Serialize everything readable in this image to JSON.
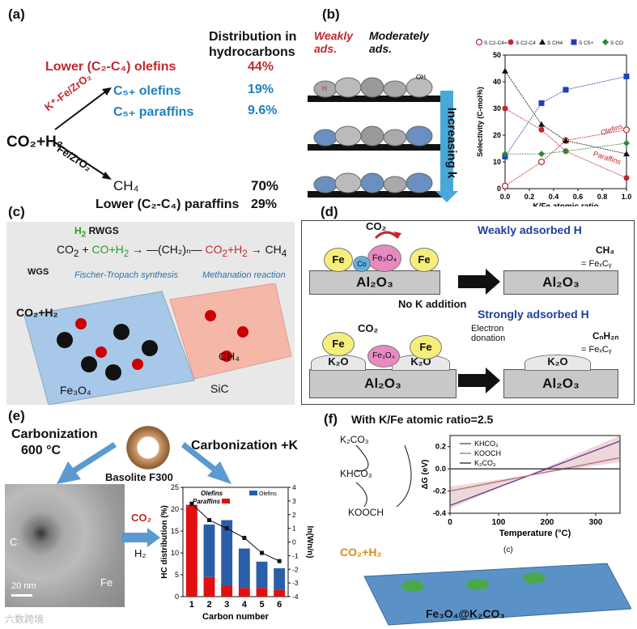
{
  "panels": {
    "a": {
      "label": "(a)",
      "dist_header": "Distribution in hydrocarbons",
      "reactant": "CO₂+H₂",
      "catalyst_k": "K⁺-Fe/ZrO₂",
      "catalyst_plain": "Fe/ZrO₂",
      "rows": [
        {
          "name": "Lower (C₂-C₄) olefins",
          "value": "44%",
          "color": "#c0282e"
        },
        {
          "name": "C₅₊ olefins",
          "value": "19%",
          "color": "#1f7fbf"
        },
        {
          "name": "C₅₊ paraffins",
          "value": "9.6%",
          "color": "#1f7fbf"
        },
        {
          "name": "CH₄",
          "value": "70%",
          "color": "#111111"
        },
        {
          "name": "Lower (C₂-C₄) paraffins",
          "value": "29%",
          "color": "#111111"
        }
      ]
    },
    "b": {
      "label": "(b)",
      "weakly": "Weakly ads.",
      "moderately": "Moderately ads.",
      "arrow_label": "Increasing k",
      "surface": "Al₂O₃",
      "site": "MOₓ"
    },
    "c": {
      "label": "(c)",
      "rwgs": "RWGS",
      "wgs": "WGS",
      "ft": "Fischer-Tropach synthesis",
      "meth": "Methanation reaction",
      "feed": "CO₂+H₂",
      "support1": "Fe₃O₄",
      "support2": "SiC",
      "chain": "—(CH₂)ₙ—",
      "ch4": "CH₄"
    },
    "d": {
      "label": "(d)",
      "weak_h": "Weakly adsorbed H",
      "strong_h": "Strongly adsorbed H",
      "no_k": "No K addition",
      "electron": "Electron donation",
      "surface": "Al₂O₃",
      "fe": "Fe",
      "co": "Co",
      "fe3o4": "Fe₃O₄",
      "k2o": "K₂O",
      "co2": "CO₂",
      "ch4": "CH₄",
      "cnh2n": "CₙH₂ₙ",
      "fexcy": "= FeₓCᵧ"
    },
    "e": {
      "label": "(e)",
      "carb": "Carbonization",
      "temp": "600 °C",
      "carb_k": "Carbonization +K",
      "mof": "Basolite F300",
      "scale": "20 nm",
      "c_label": "C",
      "fe_label": "Fe",
      "co2": "CO₂",
      "h2": "H₂"
    },
    "f": {
      "label": "(f)",
      "title": "With K/Fe atomic ratio=2.5",
      "sub": "(c)",
      "support": "Fe₃O₄@K₂CO₃",
      "feed": "CO₂+H₂",
      "cycle": [
        "K₂CO₃",
        "KHCO₃",
        "KOOCH"
      ]
    }
  },
  "watermark": "六数跨境",
  "chart_data": [
    {
      "type": "line",
      "title": "",
      "xlabel": "K/Fe atomic ratio",
      "ylabel": "Selectivity (C-mol%)",
      "xlim": [
        0,
        1.0
      ],
      "ylim": [
        0,
        50
      ],
      "xticks": [
        "0.0",
        "0.2",
        "0.4",
        "0.6",
        "0.8",
        "1.0"
      ],
      "yticks": [
        "0",
        "10",
        "20",
        "30",
        "40",
        "50"
      ],
      "legend_position": "top",
      "annotations": [
        "Olefins",
        "Paraffins"
      ],
      "series": [
        {
          "name": "S C2-C4=",
          "color": "#c0282e",
          "marker": "open-circle",
          "x": [
            0,
            0.3,
            0.5,
            1.0
          ],
          "y": [
            1,
            10,
            18,
            22
          ]
        },
        {
          "name": "S C2-C4",
          "color": "#c0282e",
          "marker": "circle",
          "x": [
            0,
            0.3,
            0.5,
            1.0
          ],
          "y": [
            30,
            22,
            14,
            4
          ]
        },
        {
          "name": "S CH4",
          "color": "#111111",
          "marker": "triangle",
          "x": [
            0,
            0.3,
            0.5,
            1.0
          ],
          "y": [
            44,
            24,
            18,
            13
          ]
        },
        {
          "name": "S C5+",
          "color": "#1f3fbf",
          "marker": "square",
          "x": [
            0,
            0.3,
            0.5,
            1.0
          ],
          "y": [
            12,
            32,
            37,
            42
          ]
        },
        {
          "name": "S CO",
          "color": "#2a8a2a",
          "marker": "diamond",
          "x": [
            0,
            0.3,
            0.5,
            1.0
          ],
          "y": [
            13,
            13,
            14,
            17
          ]
        }
      ]
    },
    {
      "type": "bar",
      "title": "",
      "xlabel": "Carbon number",
      "ylabel": "HC distribution (%)",
      "y2label": "ln(Wn/n)",
      "categories": [
        "1",
        "2",
        "3",
        "4",
        "5",
        "6"
      ],
      "ylim": [
        0,
        25
      ],
      "yticks": [
        "0",
        "5",
        "10",
        "15",
        "20",
        "25"
      ],
      "y2lim": [
        -4,
        4
      ],
      "y2ticks": [
        "-4",
        "-3",
        "-2",
        "-1",
        "0",
        "1",
        "2",
        "3",
        "4"
      ],
      "legend": [
        "Olefins",
        "Paraffins"
      ],
      "series": [
        {
          "name": "Olefins",
          "color": "#2b5ea8",
          "values": [
            0,
            12,
            15,
            9,
            6,
            5
          ]
        },
        {
          "name": "Paraffins",
          "color": "#e01010",
          "values": [
            21,
            4.5,
            2.5,
            2,
            2,
            1.5
          ]
        }
      ],
      "line": {
        "name": "ln(Wn/n)",
        "values": [
          2.8,
          1.6,
          1.0,
          0.3,
          -0.8,
          -1.4
        ]
      }
    },
    {
      "type": "line",
      "title": "",
      "xlabel": "Temperature (°C)",
      "ylabel": "ΔG (eV)",
      "xlim": [
        0,
        350
      ],
      "ylim": [
        -0.4,
        0.3
      ],
      "xticks": [
        "0",
        "100",
        "200",
        "300"
      ],
      "yticks": [
        "-0.4",
        "-0.2",
        "0.0",
        "0.2"
      ],
      "legend_position": "top-right",
      "series": [
        {
          "name": "KHCO₃",
          "color": "#6b3fa0",
          "x": [
            0,
            350
          ],
          "y": [
            -0.33,
            0.25
          ]
        },
        {
          "name": "KOOCH",
          "color": "#c07080",
          "x": [
            0,
            350
          ],
          "y": [
            -0.2,
            0.1
          ]
        },
        {
          "name": "K₂CO₃",
          "color": "#333333",
          "x": [
            0,
            350
          ],
          "y": [
            0.0,
            0.0
          ]
        }
      ]
    }
  ]
}
